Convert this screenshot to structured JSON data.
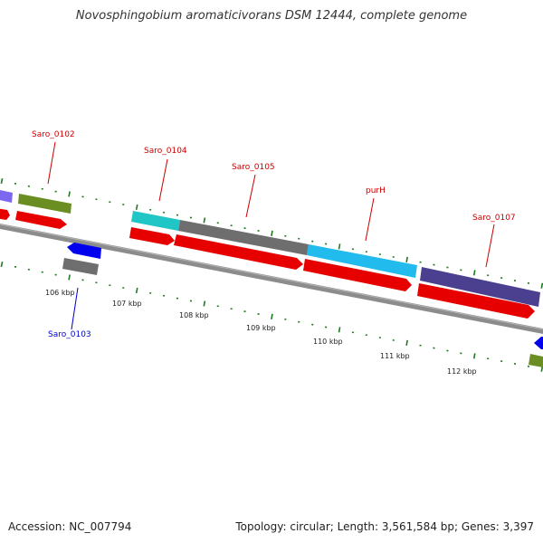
{
  "title": "Novosphingobium aromaticivorans DSM 12444, complete genome",
  "footer": {
    "accession": "Accession: NC_007794",
    "summary": "Topology: circular; Length: 3,561,584 bp; Genes: 3,397"
  },
  "colors": {
    "backbone": "#808080",
    "tick": "#1f7a1f",
    "label_forward": "#cc0000",
    "label_reverse": "#0000cc",
    "cds": "#e60000",
    "gene_gray": "#6e6e6e",
    "gene_olive": "#6b8e23",
    "gene_cyan": "#20c6c6",
    "gene_skyblue": "#22bbee",
    "gene_slate": "#4b3f8f",
    "gene_lavender": "#7b68ee",
    "gene_blue": "#0000ee"
  },
  "scale": {
    "tick_labels": [
      "106 kbp",
      "107 kbp",
      "108 kbp",
      "109 kbp",
      "110 kbp",
      "111 kbp",
      "112 kbp"
    ]
  },
  "gene_labels": [
    {
      "text": "Saro_0102",
      "strand": "forward"
    },
    {
      "text": "Saro_0104",
      "strand": "forward"
    },
    {
      "text": "Saro_0105",
      "strand": "forward"
    },
    {
      "text": "purH",
      "strand": "forward"
    },
    {
      "text": "Saro_0107",
      "strand": "forward"
    },
    {
      "text": "Saro_0103",
      "strand": "reverse"
    }
  ]
}
